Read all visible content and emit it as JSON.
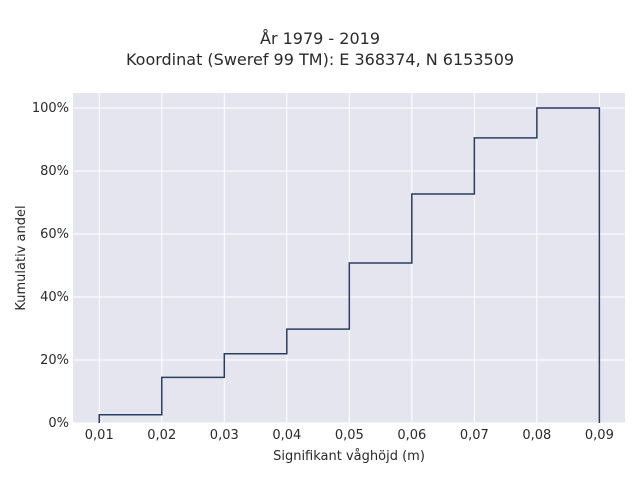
{
  "chart_data": {
    "type": "step",
    "title_line1": "År 1979 - 2019",
    "title_line2": "Koordinat (Sweref 99 TM): E 368374, N 6153509",
    "xlabel": "Signifikant våghöjd (m)",
    "ylabel": "Kumulativ andel",
    "x_ticks": [
      "0,01",
      "0,02",
      "0,03",
      "0,04",
      "0,05",
      "0,06",
      "0,07",
      "0,08",
      "0,09"
    ],
    "y_ticks": [
      "0%",
      "20%",
      "40%",
      "60%",
      "80%",
      "100%"
    ],
    "xlim": [
      0.0058,
      0.0941
    ],
    "ylim": [
      0,
      1.0
    ],
    "grid": true,
    "series": [
      {
        "x": [
          0.01,
          0.02,
          0.03,
          0.04,
          0.05,
          0.06,
          0.07,
          0.08,
          0.09
        ],
        "y": [
          0.026,
          0.145,
          0.22,
          0.298,
          0.508,
          0.727,
          0.905,
          1.0,
          0.0
        ]
      }
    ],
    "line_color": "#2a3f5f",
    "plot_bg": "#e5e5f0"
  }
}
